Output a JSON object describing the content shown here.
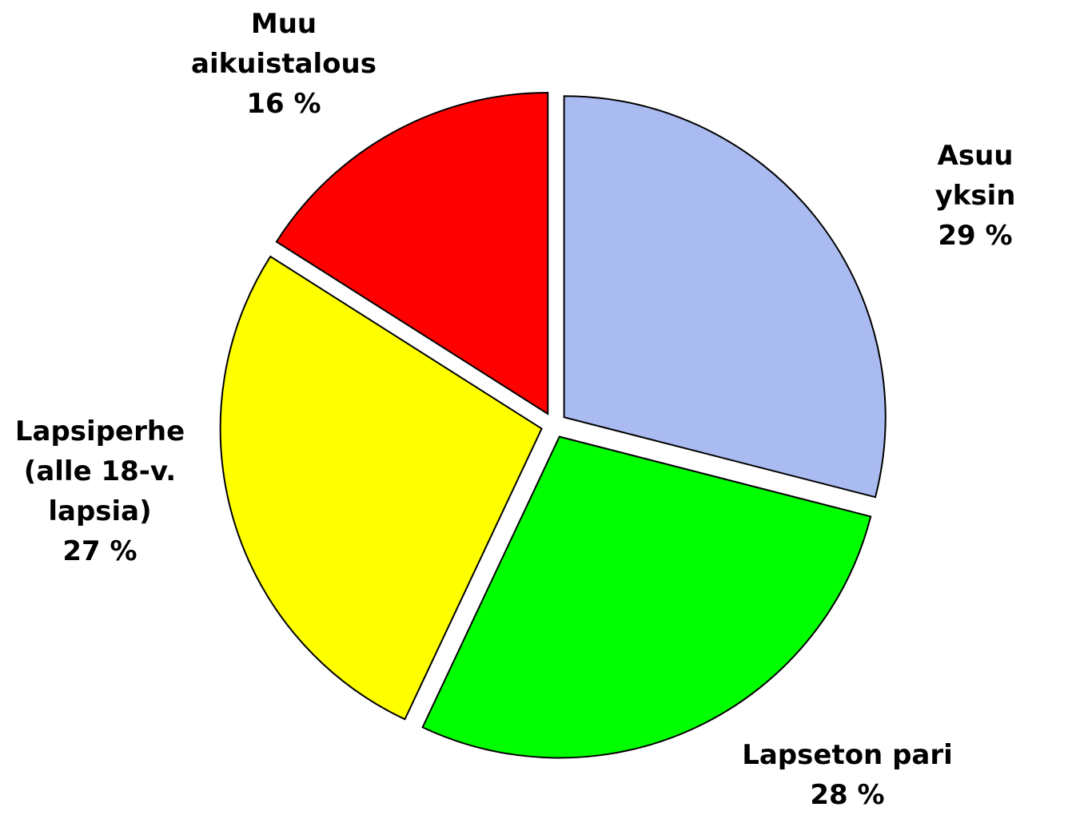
{
  "chart_data": {
    "type": "pie",
    "categories": [
      "Asuu yksin",
      "Lapseton pari",
      "Lapsiperhe\n(alle 18-v.\nlapsia)",
      "Muu\naikuistalous"
    ],
    "values": [
      29,
      28,
      27,
      16
    ],
    "value_labels": [
      "29 %",
      "28 %",
      "27 %",
      "16 %"
    ],
    "colors": [
      "#a9bbf0",
      "#00ff00",
      "#ffff00",
      "#ff0000"
    ]
  }
}
